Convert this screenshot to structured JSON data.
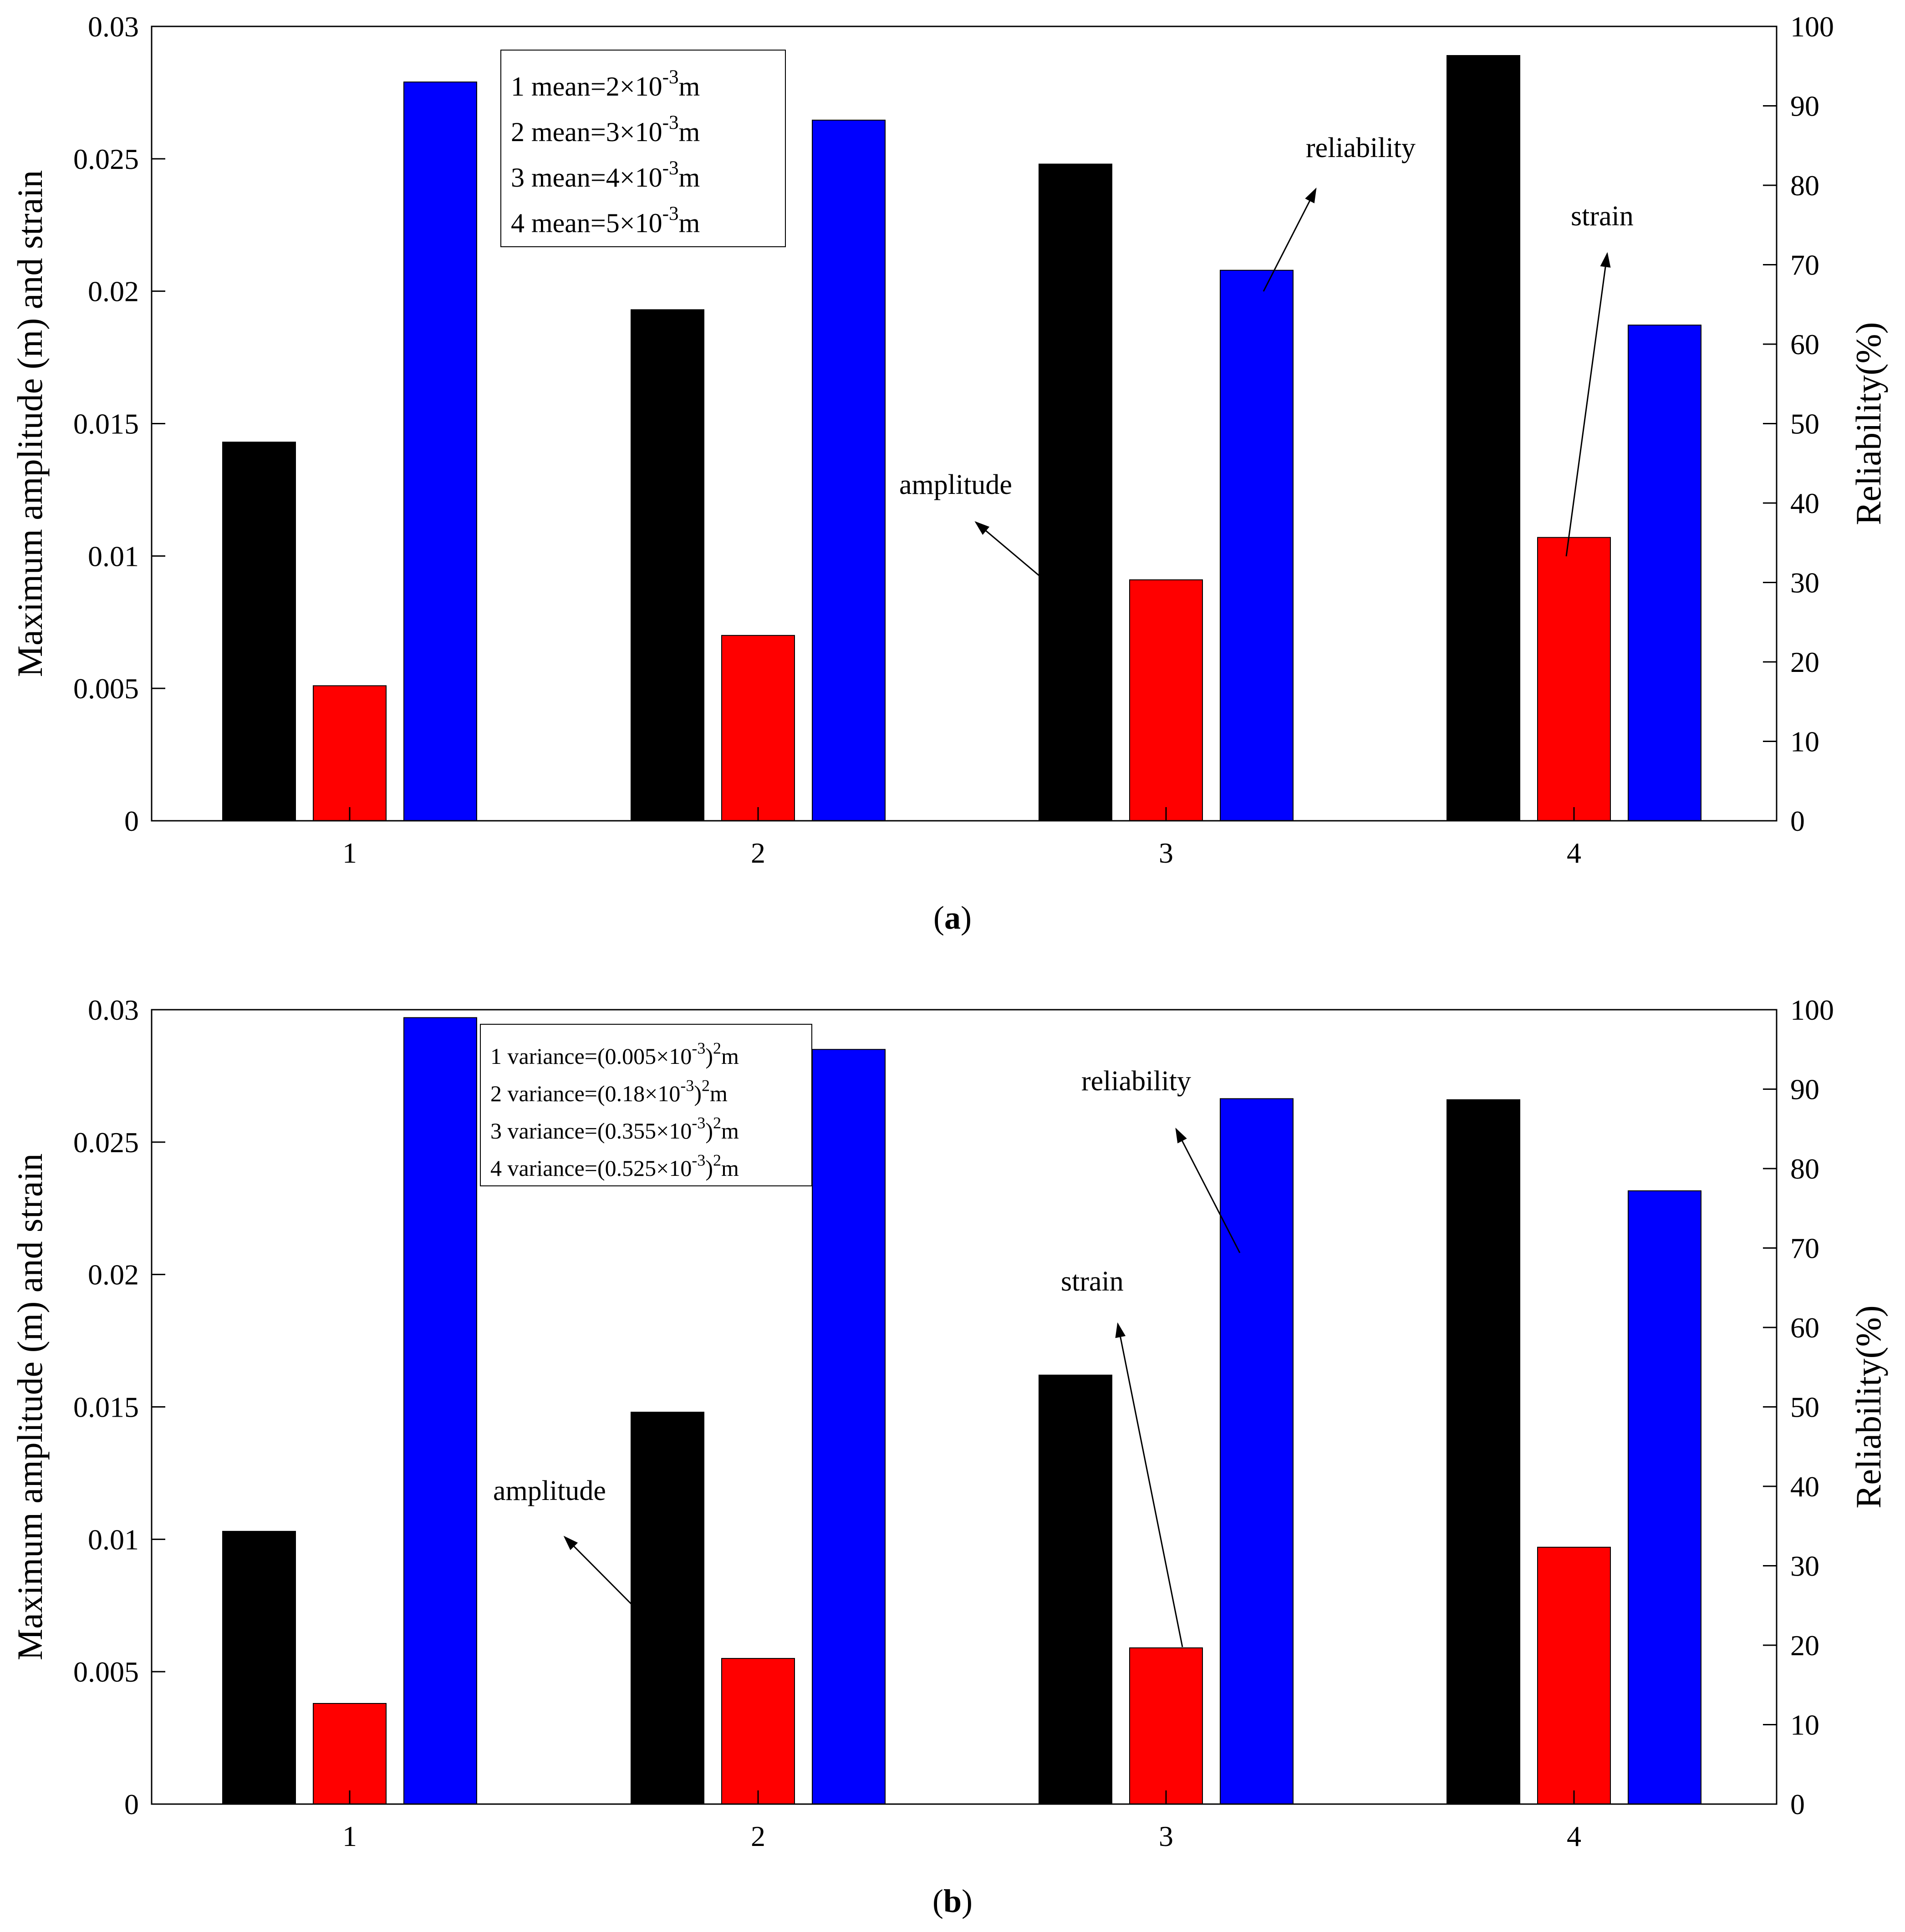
{
  "chart_data": [
    {
      "type": "bar",
      "panel_label": "(a)",
      "panel_letter": "a",
      "categories": [
        "1",
        "2",
        "3",
        "4"
      ],
      "series": [
        {
          "name": "amplitude",
          "axis": "left",
          "color": "#000000",
          "values": [
            0.0143,
            0.0193,
            0.0248,
            0.0289
          ]
        },
        {
          "name": "strain",
          "axis": "left",
          "color": "#ff0000",
          "values": [
            0.0051,
            0.007,
            0.0091,
            0.0107
          ]
        },
        {
          "name": "reliability",
          "axis": "right",
          "color": "#0000ff",
          "values": [
            93.0,
            88.2,
            69.3,
            62.4
          ]
        }
      ],
      "ylabel": "Maximum amplitude (m) and strain",
      "y2label": "Reliability(%)",
      "ylim": [
        0,
        0.03
      ],
      "y2lim": [
        0,
        100
      ],
      "yticks": [
        "0",
        "0.005",
        "0.01",
        "0.015",
        "0.02",
        "0.025",
        "0.03"
      ],
      "y2ticks": [
        "0",
        "10",
        "20",
        "30",
        "40",
        "50",
        "60",
        "70",
        "80",
        "90",
        "100"
      ],
      "legend": {
        "position": "upper-left-center",
        "entries": [
          {
            "n": "1",
            "text": "mean=2×10",
            "sup": "-3",
            "unit": "m"
          },
          {
            "n": "2",
            "text": "mean=3×10",
            "sup": "-3",
            "unit": "m"
          },
          {
            "n": "3",
            "text": "mean=4×10",
            "sup": "-3",
            "unit": "m"
          },
          {
            "n": "4",
            "text": "mean=5×10",
            "sup": "-3",
            "unit": "m"
          }
        ]
      },
      "annotations": [
        {
          "text": "amplitude",
          "points_to": "amplitude series"
        },
        {
          "text": "reliability",
          "points_to": "reliability series"
        },
        {
          "text": "strain",
          "points_to": "strain series"
        }
      ]
    },
    {
      "type": "bar",
      "panel_label": "(b)",
      "panel_letter": "b",
      "categories": [
        "1",
        "2",
        "3",
        "4"
      ],
      "series": [
        {
          "name": "amplitude",
          "axis": "left",
          "color": "#000000",
          "values": [
            0.0103,
            0.0148,
            0.0162,
            0.0266
          ]
        },
        {
          "name": "strain",
          "axis": "left",
          "color": "#ff0000",
          "values": [
            0.0038,
            0.0055,
            0.0059,
            0.0097
          ]
        },
        {
          "name": "reliability",
          "axis": "right",
          "color": "#0000ff",
          "values": [
            99.0,
            95.0,
            88.8,
            77.2
          ]
        }
      ],
      "ylabel": "Maximum amplitude (m) and strain",
      "y2label": "Reliability(%)",
      "ylim": [
        0,
        0.03
      ],
      "y2lim": [
        0,
        100
      ],
      "yticks": [
        "0",
        "0.005",
        "0.01",
        "0.015",
        "0.02",
        "0.025",
        "0.03"
      ],
      "y2ticks": [
        "0",
        "10",
        "20",
        "30",
        "40",
        "50",
        "60",
        "70",
        "80",
        "90",
        "100"
      ],
      "legend": {
        "position": "upper-left-center",
        "entries": [
          {
            "n": "1",
            "text": "variance=(0.005×10",
            "sup": "-3",
            "close": ")",
            "sup2": "2",
            "unit": "m"
          },
          {
            "n": "2",
            "text": "variance=(0.18×10",
            "sup": "-3",
            "close": ")",
            "sup2": "2",
            "unit": "m"
          },
          {
            "n": "3",
            "text": "variance=(0.355×10",
            "sup": "-3",
            "close": ")",
            "sup2": "2",
            "unit": "m"
          },
          {
            "n": "4",
            "text": "variance=(0.525×10",
            "sup": "-3",
            "close": ")",
            "sup2": "2",
            "unit": "m"
          }
        ]
      },
      "annotations": [
        {
          "text": "amplitude",
          "points_to": "amplitude series"
        },
        {
          "text": "reliability",
          "points_to": "reliability series"
        },
        {
          "text": "strain",
          "points_to": "strain series"
        }
      ]
    }
  ]
}
